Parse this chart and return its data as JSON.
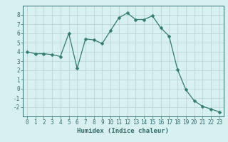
{
  "x": [
    0,
    1,
    2,
    3,
    4,
    5,
    6,
    7,
    8,
    9,
    10,
    11,
    12,
    13,
    14,
    15,
    16,
    17,
    18,
    19,
    20,
    21,
    22,
    23
  ],
  "y": [
    4.0,
    3.8,
    3.8,
    3.7,
    3.5,
    6.0,
    2.2,
    5.4,
    5.3,
    4.9,
    6.3,
    7.7,
    8.2,
    7.5,
    7.5,
    7.9,
    6.6,
    5.7,
    2.1,
    -0.1,
    -1.3,
    -1.9,
    -2.2,
    -2.5
  ],
  "line_color": "#2e7d6e",
  "marker": "D",
  "marker_size": 2.5,
  "bg_color": "#d8f0f0",
  "grid_color": "#b8d8d8",
  "xlabel": "Humidex (Indice chaleur)",
  "xlim": [
    -0.5,
    23.5
  ],
  "ylim": [
    -3,
    9
  ],
  "yticks": [
    -2,
    -1,
    0,
    1,
    2,
    3,
    4,
    5,
    6,
    7,
    8
  ],
  "xticks": [
    0,
    1,
    2,
    3,
    4,
    5,
    6,
    7,
    8,
    9,
    10,
    11,
    12,
    13,
    14,
    15,
    16,
    17,
    18,
    19,
    20,
    21,
    22,
    23
  ],
  "tick_fontsize": 5.5,
  "xlabel_fontsize": 6.5,
  "tick_color": "#2e6b6b",
  "spine_color": "#2e6b6b",
  "label_color": "#2e6b6b"
}
